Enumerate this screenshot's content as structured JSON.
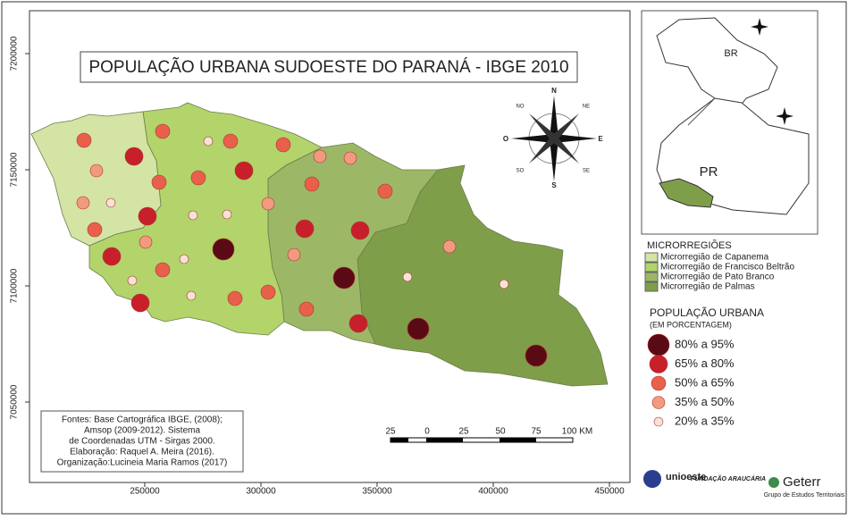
{
  "title": "POPULAÇÃO URBANA SUDOESTE DO PARANÁ - IBGE 2010",
  "map_grid": {
    "x_ticks": [
      250000,
      300000,
      350000,
      400000,
      450000
    ],
    "y_ticks": [
      7050000,
      7100000,
      7150000,
      7200000
    ]
  },
  "compass": {
    "directions": [
      "N",
      "S",
      "O",
      "E",
      "NO",
      "NE",
      "SO",
      "SE"
    ]
  },
  "microregions": {
    "title": "MICRORREGIÕES",
    "items": [
      {
        "name": "Microrregião de Capanema",
        "color": "#d3e4a4"
      },
      {
        "name": "Microrregião de Francisco Beltrão",
        "color": "#b2d46a"
      },
      {
        "name": "Microrregião de Pato Branco",
        "color": "#9cb866"
      },
      {
        "name": "Microrregião de Palmas",
        "color": "#7f9e4a"
      }
    ]
  },
  "population_legend": {
    "title": "POPULAÇÃO URBANA",
    "subtitle": "(EM PORCENTAGEM)",
    "classes": [
      {
        "label": "80% a 95%",
        "color": "#5a0a14"
      },
      {
        "label": "65% a 80%",
        "color": "#c8202a"
      },
      {
        "label": "50% a 65%",
        "color": "#e9604a"
      },
      {
        "label": "35% a 50%",
        "color": "#f29a80"
      },
      {
        "label": "20% a 35%",
        "color": "#f8e2d6"
      }
    ]
  },
  "scale_bar": {
    "labels": [
      "25",
      "0",
      "25",
      "50",
      "75",
      "100 KM"
    ]
  },
  "sources": [
    "Fontes: Base Cartográfica IBGE, (2008);",
    "Amsop (2009-2012). Sistema",
    "de Coordenadas UTM - Sirgas 2000.",
    "Elaboração: Raquel A. Meira (2016).",
    "Organização:Lucineia Maria Ramos (2017)"
  ],
  "inset": {
    "labels": [
      "BR",
      "PR"
    ]
  },
  "logos": {
    "unioeste": "unioeste",
    "araucaria": "FUNDAÇÃO ARAUCÁRIA",
    "geterr": "Geterr",
    "geterr_sub": "Grupo de Estudos Territoriais"
  }
}
